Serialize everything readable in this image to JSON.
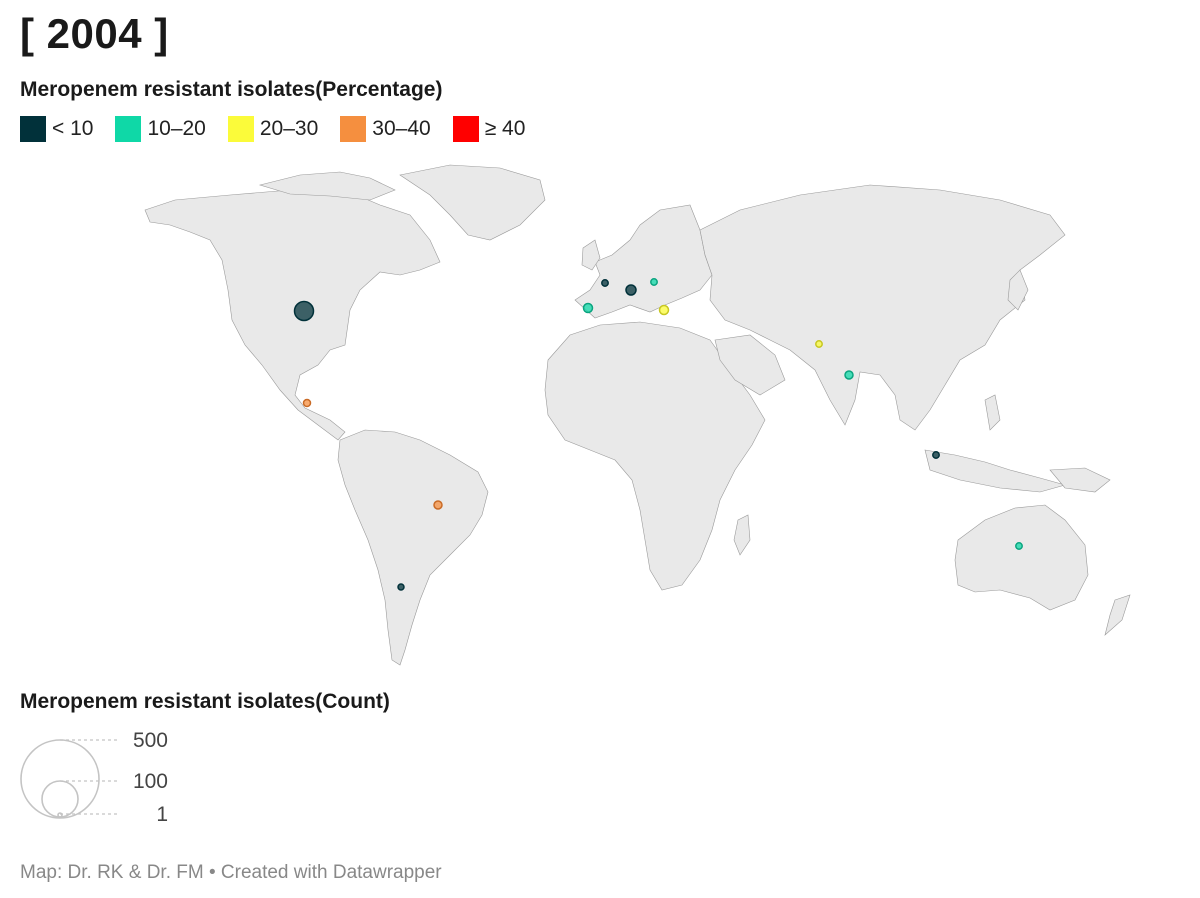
{
  "title": "[ 2004 ]",
  "legend_pct": {
    "title": "Meropenem resistant isolates(Percentage)",
    "items": [
      {
        "label": "< 10",
        "color": "#01313a"
      },
      {
        "label": "10–20",
        "color": "#0fd8a7"
      },
      {
        "label": "20–30",
        "color": "#fbfb3a"
      },
      {
        "label": "30–40",
        "color": "#f58f3f"
      },
      {
        "label": "≥ 40",
        "color": "#ff0000"
      }
    ]
  },
  "legend_count": {
    "title": "Meropenem resistant isolates(Count)",
    "labels": [
      "500",
      "100",
      "1"
    ]
  },
  "credit": "Map: Dr. RK & Dr. FM • Created with Datawrapper",
  "map": {
    "land_color": "#e9e9e9",
    "border_color": "#666666",
    "points": [
      {
        "location": "United States",
        "category": "< 10",
        "count": 500
      },
      {
        "location": "Central America",
        "category": "30–40",
        "count": 15
      },
      {
        "location": "Brazil",
        "category": "30–40",
        "count": 20
      },
      {
        "location": "Argentina",
        "category": "< 10",
        "count": 10
      },
      {
        "location": "Spain",
        "category": "10–20",
        "count": 25
      },
      {
        "location": "France",
        "category": "< 10",
        "count": 12
      },
      {
        "location": "Italy",
        "category": "< 10",
        "count": 35
      },
      {
        "location": "Eastern Europe",
        "category": "10–20",
        "count": 12
      },
      {
        "location": "Greece",
        "category": "20–30",
        "count": 25
      },
      {
        "location": "Pakistan",
        "category": "20–30",
        "count": 12
      },
      {
        "location": "India",
        "category": "10–20",
        "count": 18
      },
      {
        "location": "Singapore",
        "category": "< 10",
        "count": 12
      },
      {
        "location": "Australia",
        "category": "10–20",
        "count": 12
      }
    ]
  }
}
